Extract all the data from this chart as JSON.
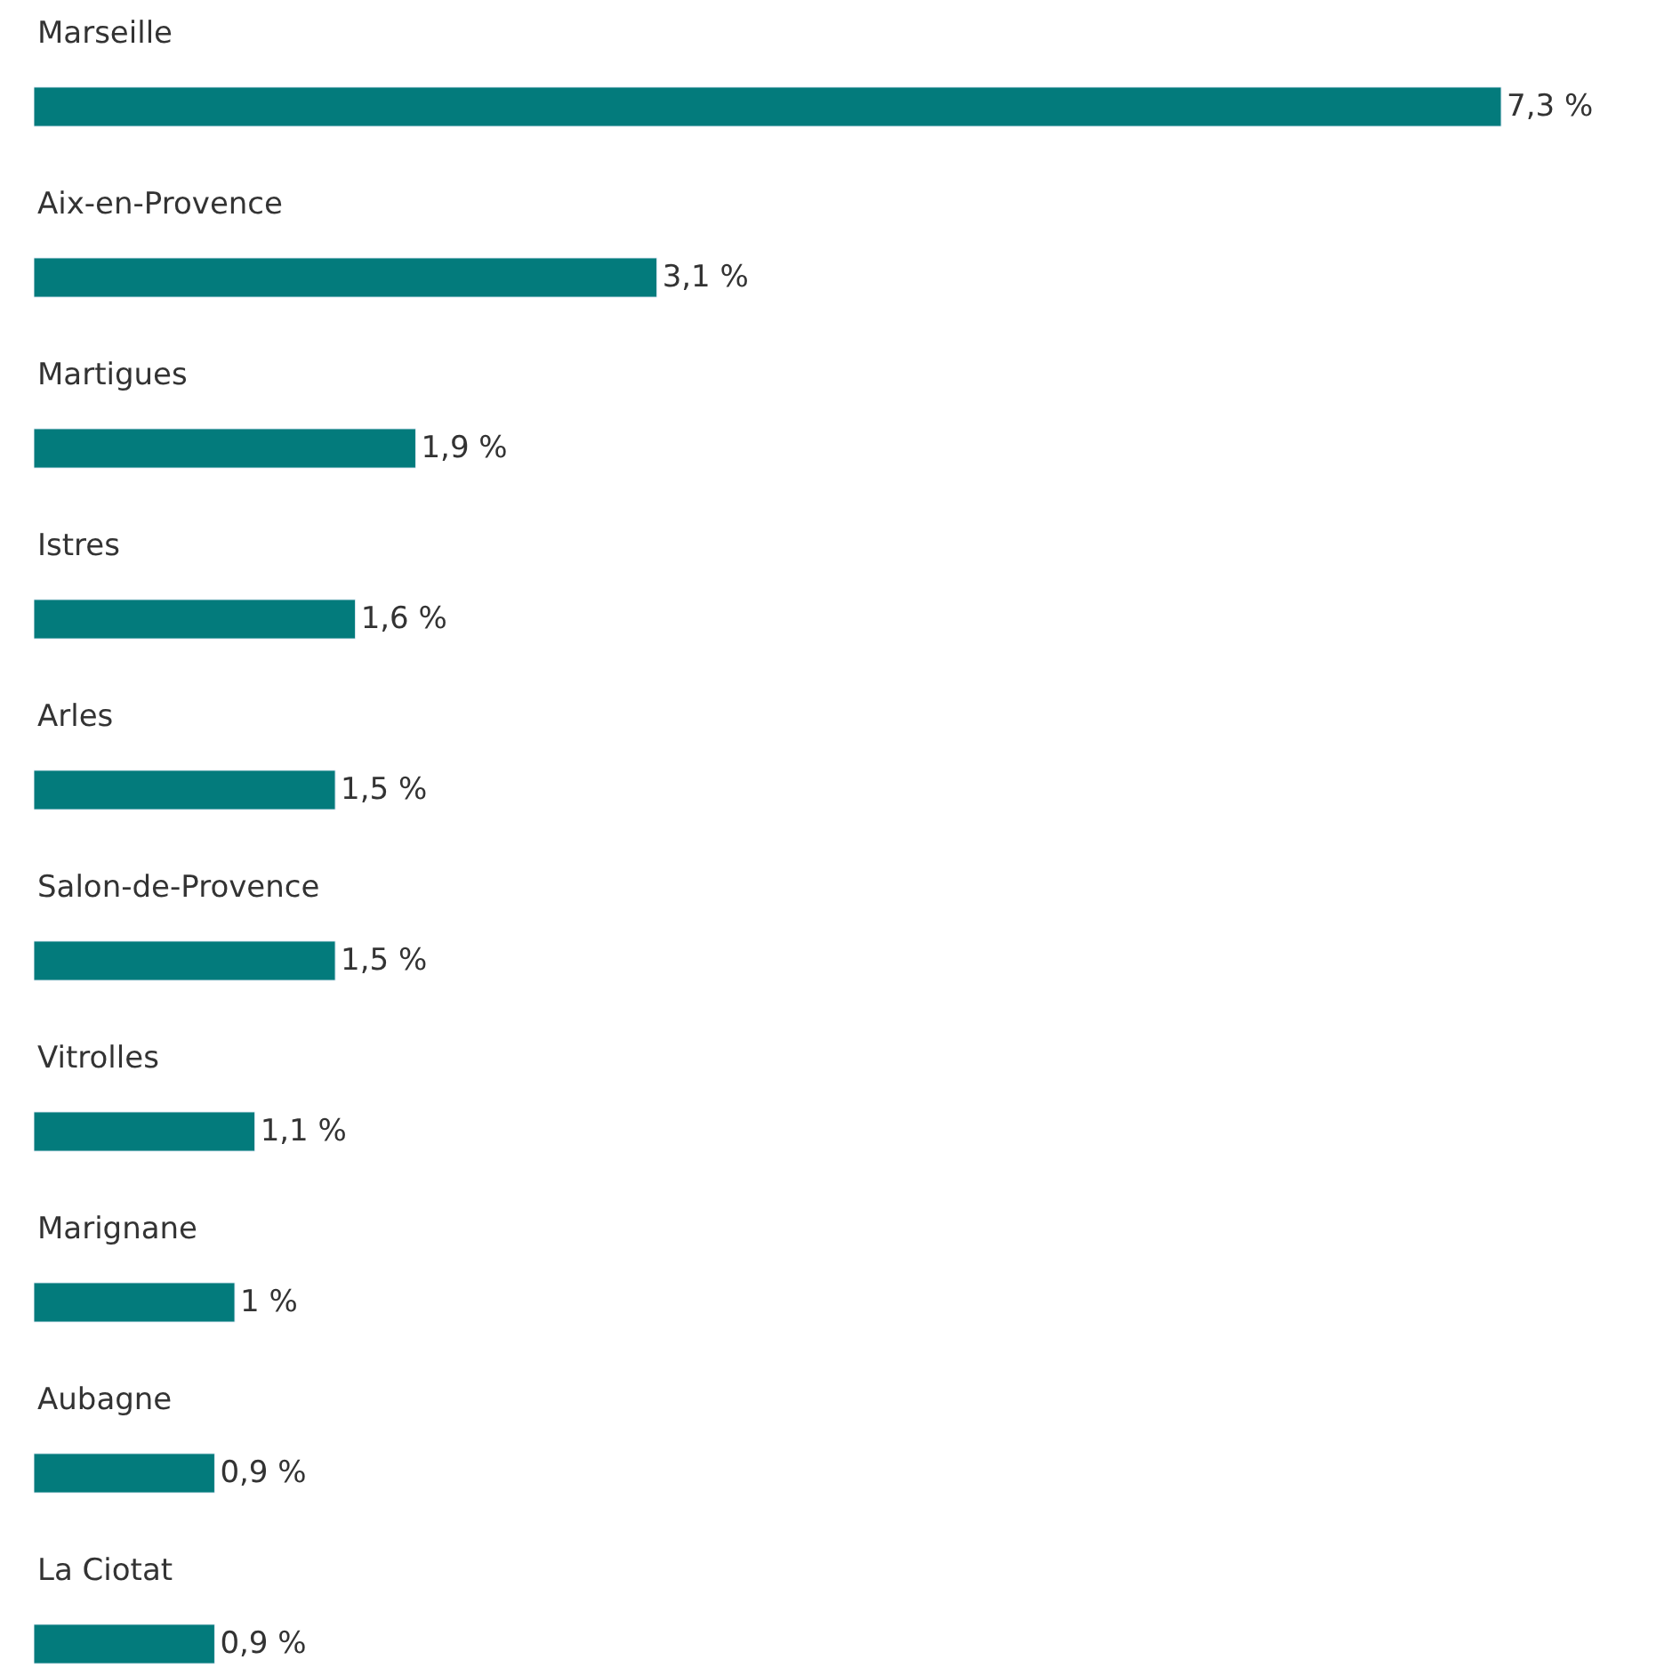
{
  "chart_data": {
    "type": "bar",
    "orientation": "horizontal",
    "categories": [
      "Marseille",
      "Aix-en-Provence",
      "Martigues",
      "Istres",
      "Arles",
      "Salon-de-Provence",
      "Vitrolles",
      "Marignane",
      "Aubagne",
      "La Ciotat"
    ],
    "values": [
      7.3,
      3.1,
      1.9,
      1.6,
      1.5,
      1.5,
      1.1,
      1,
      0.9,
      0.9
    ],
    "value_labels": [
      "7,3 %",
      "3,1 %",
      "1,9 %",
      "1,6 %",
      "1,5 %",
      "1,5 %",
      "1,1 %",
      "1 %",
      "0,9 %",
      "0,9 %"
    ],
    "color": "#037b7c"
  }
}
